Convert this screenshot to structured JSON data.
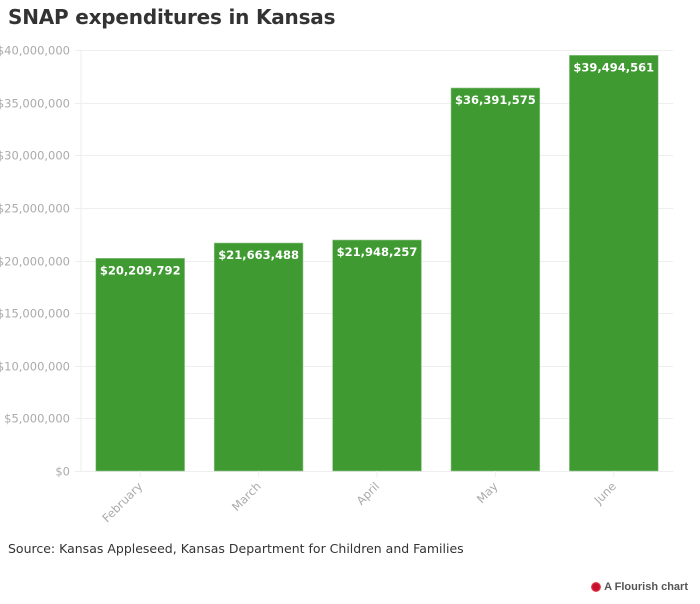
{
  "title": "SNAP expenditures in Kansas",
  "source": "Source: Kansas Appleseed, Kansas Department for Children and Families",
  "credit": {
    "label": "A Flourish chart",
    "icon": "flourish-logo-icon",
    "icon_color": "#c8102e"
  },
  "colors": {
    "bar": "#3f9a32",
    "grid": "#eeeeee",
    "tick_label": "#aaaaaa",
    "bar_label": "#ffffff"
  },
  "chart_data": {
    "type": "bar",
    "title": "SNAP expenditures in Kansas",
    "xlabel": "",
    "ylabel": "",
    "categories": [
      "February",
      "March",
      "April",
      "May",
      "June"
    ],
    "values": [
      20209792,
      21663488,
      21948257,
      36391575,
      39494561
    ],
    "value_labels": [
      "$20,209,792",
      "$21,663,488",
      "$21,948,257",
      "$36,391,575",
      "$39,494,561"
    ],
    "ylim": [
      0,
      40000000
    ],
    "yticks": [
      0,
      5000000,
      10000000,
      15000000,
      20000000,
      25000000,
      30000000,
      35000000,
      40000000
    ],
    "ytick_labels": [
      "$0",
      "$5,000,000",
      "$10,000,000",
      "$15,000,000",
      "$20,000,000",
      "$25,000,000",
      "$30,000,000",
      "$35,000,000",
      "$40,000,000"
    ],
    "grid": true,
    "legend": "none"
  }
}
